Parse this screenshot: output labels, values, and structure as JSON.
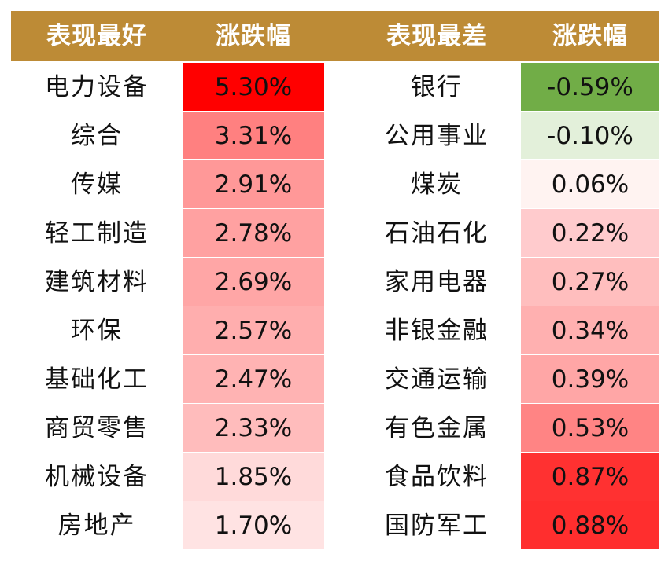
{
  "chart_data": {
    "type": "table",
    "headers": {
      "best": "表现最好",
      "best_change": "涨跌幅",
      "worst": "表现最差",
      "worst_change": "涨跌幅"
    },
    "best": [
      {
        "name": "电力设备",
        "value": "5.30%",
        "color": "#ff0000"
      },
      {
        "name": "综合",
        "value": "3.31%",
        "color": "#ff8080"
      },
      {
        "name": "传媒",
        "value": "2.91%",
        "color": "#ff9898"
      },
      {
        "name": "轻工制造",
        "value": "2.78%",
        "color": "#ffa1a1"
      },
      {
        "name": "建筑材料",
        "value": "2.69%",
        "color": "#ffa6a6"
      },
      {
        "name": "环保",
        "value": "2.57%",
        "color": "#ffaeae"
      },
      {
        "name": "基础化工",
        "value": "2.47%",
        "color": "#ffb3b3"
      },
      {
        "name": "商贸零售",
        "value": "2.33%",
        "color": "#ffbcbc"
      },
      {
        "name": "机械设备",
        "value": "1.85%",
        "color": "#ffdada"
      },
      {
        "name": "房地产",
        "value": "1.70%",
        "color": "#ffe3e3"
      }
    ],
    "worst": [
      {
        "name": "银行",
        "value": "-0.59%",
        "color": "#71ad47"
      },
      {
        "name": "公用事业",
        "value": "-0.10%",
        "color": "#e3f0da"
      },
      {
        "name": "煤炭",
        "value": "0.06%",
        "color": "#fff3f1"
      },
      {
        "name": "石油石化",
        "value": "0.22%",
        "color": "#ffcbcd"
      },
      {
        "name": "家用电器",
        "value": "0.27%",
        "color": "#ffbebe"
      },
      {
        "name": "非银金融",
        "value": "0.34%",
        "color": "#ffb0b0"
      },
      {
        "name": "交通运输",
        "value": "0.39%",
        "color": "#ffa6a6"
      },
      {
        "name": "有色金属",
        "value": "0.53%",
        "color": "#ff8484"
      },
      {
        "name": "食品饮料",
        "value": "0.87%",
        "color": "#ff3131"
      },
      {
        "name": "国防军工",
        "value": "0.88%",
        "color": "#ff2e2e"
      }
    ]
  }
}
